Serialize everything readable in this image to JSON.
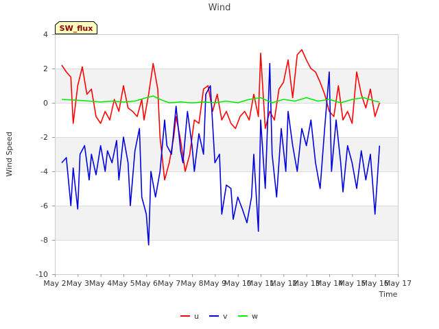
{
  "chart_data": {
    "type": "line",
    "title": "Wind",
    "badge": "SW_flux",
    "xlabel": "Time",
    "ylabel": "Wind Speed",
    "xlim": [
      2,
      17
    ],
    "ylim": [
      -10,
      4
    ],
    "x_ticks": [
      2,
      3,
      4,
      5,
      6,
      7,
      8,
      9,
      10,
      11,
      12,
      13,
      14,
      15,
      16,
      17
    ],
    "x_tick_labels": [
      "May 2",
      "May 3",
      "May 4",
      "May 5",
      "May 6",
      "May 7",
      "May 8",
      "May 9",
      "May 10",
      "May 11",
      "May 12",
      "May 13",
      "May 14",
      "May 15",
      "May 16",
      "May 17"
    ],
    "y_ticks": [
      4,
      2,
      0,
      -2,
      -4,
      -6,
      -8,
      -10
    ],
    "y_tick_labels": [
      "4",
      "2",
      "0",
      "-2",
      "-4",
      "-6",
      "-8",
      "-10"
    ],
    "bands": [
      [
        0,
        2
      ],
      [
        -4,
        -2
      ],
      [
        -8,
        -6
      ]
    ],
    "legend_position": "bottom-center",
    "colors": {
      "u": "#ff0000",
      "v": "#0000dd",
      "w": "#00ee00",
      "band": "#f2f2f2",
      "grid": "#dddddd",
      "badge_bg": "#ffffc0"
    },
    "series": [
      {
        "name": "u",
        "color": "#ff0000",
        "x": [
          2.3,
          2.5,
          2.7,
          2.8,
          3.0,
          3.2,
          3.4,
          3.6,
          3.8,
          4.0,
          4.2,
          4.4,
          4.6,
          4.8,
          5.0,
          5.2,
          5.4,
          5.6,
          5.8,
          5.9,
          6.1,
          6.3,
          6.5,
          6.6,
          6.8,
          7.0,
          7.2,
          7.3,
          7.5,
          7.7,
          7.9,
          8.1,
          8.3,
          8.5,
          8.7,
          8.9,
          9.1,
          9.3,
          9.5,
          9.7,
          9.9,
          10.1,
          10.3,
          10.5,
          10.7,
          10.9,
          11.0,
          11.2,
          11.4,
          11.6,
          11.8,
          12.0,
          12.2,
          12.4,
          12.6,
          12.8,
          13.0,
          13.2,
          13.4,
          13.6,
          13.8,
          14.0,
          14.2,
          14.4,
          14.6,
          14.8,
          15.0,
          15.2,
          15.4,
          15.6,
          15.8,
          16.0,
          16.2
        ],
        "y": [
          2.2,
          1.8,
          1.5,
          -1.2,
          1.0,
          2.1,
          0.5,
          0.8,
          -0.8,
          -1.2,
          -0.5,
          -1.0,
          0.2,
          -0.5,
          1.0,
          -0.3,
          -0.5,
          -0.8,
          0.2,
          -1.0,
          0.5,
          2.3,
          0.8,
          -2.0,
          -4.5,
          -3.5,
          -2.0,
          -0.8,
          -2.2,
          -4.0,
          -3.0,
          -1.0,
          -1.2,
          0.8,
          1.0,
          -0.5,
          0.5,
          -1.0,
          -0.5,
          -1.2,
          -1.5,
          -0.8,
          -0.5,
          -1.0,
          0.5,
          -0.8,
          2.9,
          -1.5,
          -0.5,
          -1.0,
          0.8,
          1.2,
          2.5,
          0.3,
          2.8,
          3.1,
          2.5,
          2.0,
          1.8,
          1.2,
          0.5,
          -0.5,
          -0.8,
          1.0,
          -1.0,
          -0.5,
          -1.2,
          1.8,
          0.5,
          -0.3,
          0.8,
          -0.8,
          0.0
        ]
      },
      {
        "name": "v",
        "color": "#0000dd",
        "x": [
          2.3,
          2.5,
          2.7,
          2.8,
          3.0,
          3.1,
          3.3,
          3.5,
          3.6,
          3.8,
          4.0,
          4.2,
          4.3,
          4.5,
          4.7,
          4.8,
          5.0,
          5.2,
          5.3,
          5.5,
          5.7,
          5.8,
          6.0,
          6.1,
          6.2,
          6.4,
          6.6,
          6.8,
          6.9,
          7.1,
          7.3,
          7.5,
          7.6,
          7.8,
          8.0,
          8.1,
          8.3,
          8.5,
          8.6,
          8.8,
          9.0,
          9.2,
          9.3,
          9.5,
          9.7,
          9.8,
          10.0,
          10.2,
          10.4,
          10.6,
          10.7,
          10.9,
          11.0,
          11.2,
          11.4,
          11.5,
          11.7,
          11.9,
          12.1,
          12.2,
          12.4,
          12.6,
          12.8,
          13.0,
          13.2,
          13.4,
          13.6,
          13.8,
          14.0,
          14.1,
          14.3,
          14.5,
          14.6,
          14.8,
          15.0,
          15.2,
          15.4,
          15.6,
          15.8,
          16.0,
          16.2
        ],
        "y": [
          -3.5,
          -3.2,
          -6.0,
          -3.8,
          -6.2,
          -3.0,
          -2.5,
          -4.5,
          -3.0,
          -4.2,
          -2.5,
          -4.0,
          -2.8,
          -3.5,
          -2.2,
          -4.5,
          -2.0,
          -3.5,
          -6.0,
          -2.8,
          -1.5,
          -5.5,
          -6.5,
          -8.3,
          -4.0,
          -5.5,
          -4.0,
          -1.0,
          -2.5,
          -3.0,
          -0.2,
          -2.8,
          -3.5,
          -0.5,
          -2.5,
          -4.0,
          -1.8,
          -3.0,
          0.5,
          1.0,
          -3.5,
          -3.0,
          -6.5,
          -4.8,
          -5.0,
          -6.8,
          -5.5,
          -6.2,
          -7.0,
          -5.5,
          -3.0,
          -7.5,
          -1.0,
          -5.0,
          2.3,
          -3.0,
          -5.5,
          -1.5,
          -4.0,
          -0.5,
          -2.5,
          -4.0,
          -1.5,
          -2.5,
          -1.0,
          -3.5,
          -5.0,
          -1.5,
          1.8,
          -4.0,
          -1.0,
          -3.5,
          -5.2,
          -2.5,
          -3.5,
          -5.0,
          -2.8,
          -4.5,
          -3.0,
          -6.5,
          -2.5
        ]
      },
      {
        "name": "w",
        "color": "#00ee00",
        "x": [
          2.3,
          3.0,
          3.5,
          4.0,
          4.5,
          5.0,
          5.5,
          6.0,
          6.3,
          6.6,
          7.0,
          7.5,
          8.0,
          8.5,
          9.0,
          9.5,
          10.0,
          10.5,
          11.0,
          11.5,
          12.0,
          12.5,
          13.0,
          13.5,
          14.0,
          14.5,
          15.0,
          15.5,
          16.0,
          16.2
        ],
        "y": [
          0.2,
          0.15,
          0.1,
          0.05,
          0.1,
          0.05,
          0.1,
          0.3,
          0.4,
          0.2,
          0.0,
          0.05,
          0.0,
          0.05,
          0.0,
          0.1,
          0.0,
          0.2,
          0.3,
          0.0,
          0.2,
          0.1,
          0.3,
          0.1,
          0.2,
          0.0,
          0.2,
          0.3,
          0.1,
          0.05
        ]
      }
    ]
  }
}
